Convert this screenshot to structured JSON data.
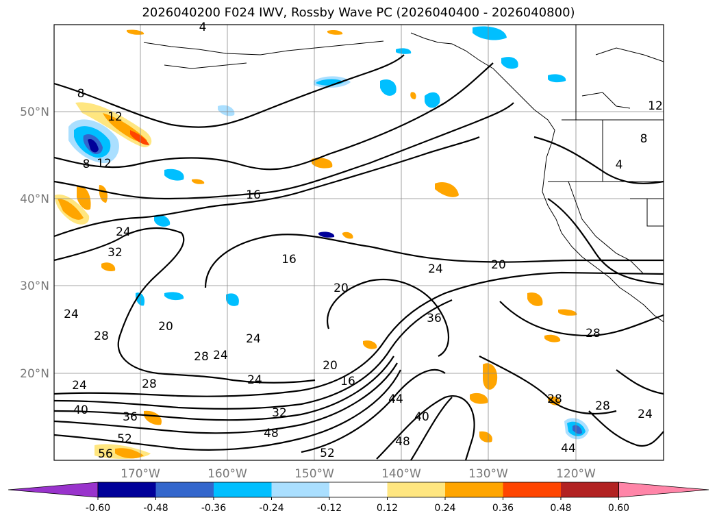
{
  "title": "2026040200 F024 IWV, Rossby Wave PC (2026040400 - 2026040800)",
  "lat_labels": [
    "50°N",
    "40°N",
    "30°N",
    "20°N"
  ],
  "lon_labels": [
    "170°W",
    "160°W",
    "150°W",
    "140°W",
    "130°W",
    "120°W"
  ],
  "contour_labels": [
    "4",
    "4",
    "8",
    "8",
    "8",
    "12",
    "12",
    "12",
    "16",
    "16",
    "16",
    "20",
    "20",
    "20",
    "20",
    "24",
    "24",
    "24",
    "24",
    "24",
    "24",
    "24",
    "24",
    "28",
    "28",
    "28",
    "28",
    "28",
    "28",
    "32",
    "32",
    "36",
    "36",
    "40",
    "40",
    "44",
    "44",
    "48",
    "48",
    "52",
    "52",
    "56"
  ],
  "colorbar": {
    "ticks": [
      "-0.60",
      "-0.48",
      "-0.36",
      "-0.24",
      "-0.12",
      "0.12",
      "0.24",
      "0.36",
      "0.48",
      "0.60"
    ],
    "colors": [
      "#9933cc",
      "#000099",
      "#3366cc",
      "#00bfff",
      "#aadfff",
      "#ffffff",
      "#ffe680",
      "#ffa500",
      "#ff4500",
      "#b22222",
      "#ff85a8"
    ]
  }
}
